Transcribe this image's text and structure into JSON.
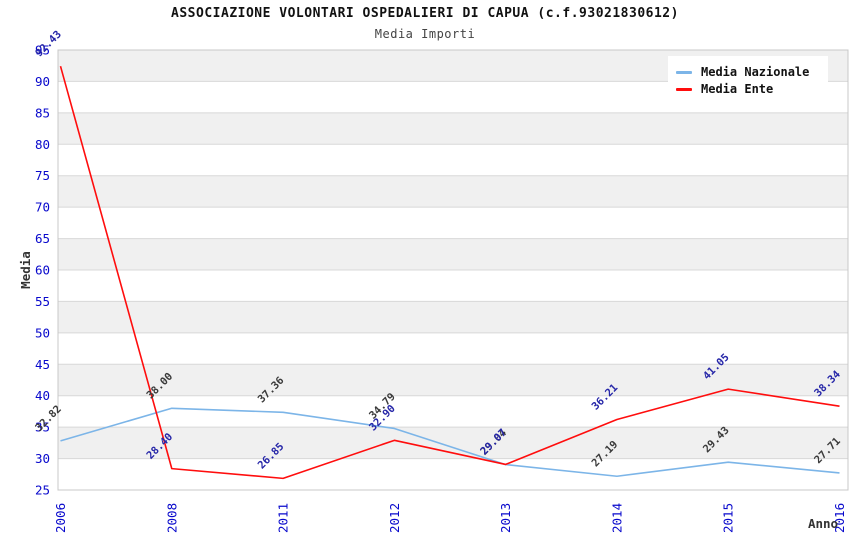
{
  "header": {
    "title": "ASSOCIAZIONE VOLONTARI OSPEDALIERI DI CAPUA (c.f.93021830612)",
    "subtitle": "Media Importi"
  },
  "legend": {
    "items": [
      {
        "label": "Media Nazionale",
        "color": "#7cb5e8"
      },
      {
        "label": "Media Ente",
        "color": "#ff0d0d"
      }
    ]
  },
  "chart_data": {
    "type": "line",
    "title": "ASSOCIAZIONE VOLONTARI OSPEDALIERI DI CAPUA (c.f.93021830612)",
    "subtitle": "Media Importi",
    "xlabel": "Anno",
    "ylabel": "Media",
    "categories": [
      "2006",
      "2008",
      "2011",
      "2012",
      "2013",
      "2014",
      "2015",
      "2016"
    ],
    "series": [
      {
        "name": "Media Nazionale",
        "color": "#7cb5e8",
        "label_color": "#3a3a3a",
        "values": [
          32.82,
          38.0,
          37.36,
          34.79,
          29.04,
          27.19,
          29.43,
          27.71
        ],
        "labels": [
          "32.82",
          "38.00",
          "37.36",
          "34.79",
          "29.04",
          "27.19",
          "29.43",
          "27.71"
        ]
      },
      {
        "name": "Media Ente",
        "color": "#ff0d0d",
        "label_color": "#2626a8",
        "values": [
          92.43,
          28.4,
          26.85,
          32.9,
          29.07,
          36.21,
          41.05,
          38.34
        ],
        "labels": [
          "92.43",
          "28.40",
          "26.85",
          "32.90",
          "29.07",
          "36.21",
          "41.05",
          "38.34"
        ]
      }
    ],
    "ylim": [
      25,
      95
    ],
    "ytick_step": 5,
    "grid": true,
    "band_fill": "#f0f0f0",
    "grid_color": "#d8d8d8",
    "border_color": "#c8c8c8",
    "tick_color": "#0808cc",
    "legend_position": "top-right"
  }
}
